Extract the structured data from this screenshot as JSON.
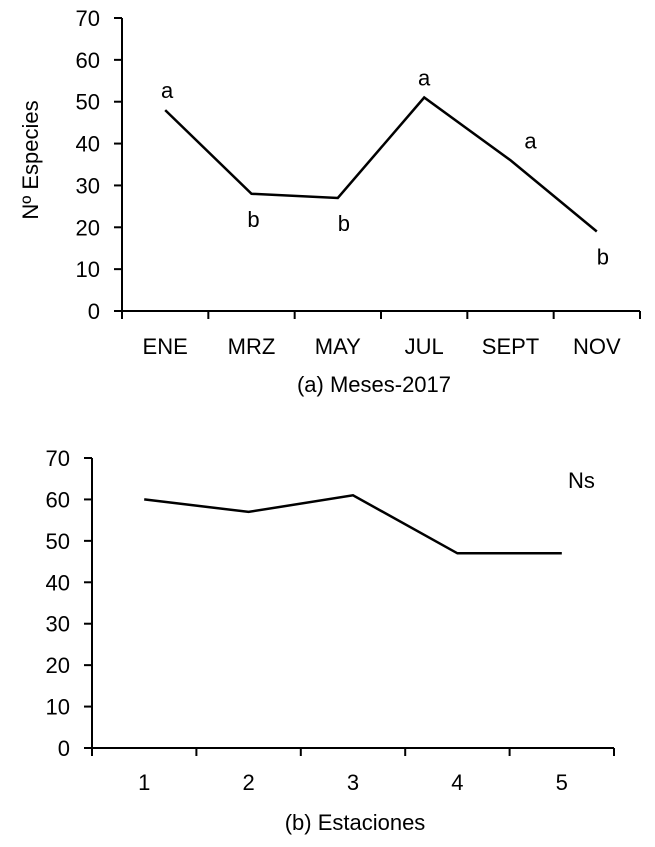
{
  "chart_data": [
    {
      "type": "line",
      "categories": [
        "ENE",
        "MRZ",
        "MAY",
        "JUL",
        "SEPT",
        "NOV"
      ],
      "values": [
        48,
        28,
        27,
        51,
        36,
        19
      ],
      "annotations": [
        "a",
        "b",
        "b",
        "a",
        "a",
        "b"
      ],
      "xlabel": "(a) Meses-2017",
      "ylabel": "Nº Especies",
      "ylim": [
        0,
        70
      ],
      "yticks": [
        0,
        10,
        20,
        30,
        40,
        50,
        60,
        70
      ],
      "grid": false
    },
    {
      "type": "line",
      "categories": [
        "1",
        "2",
        "3",
        "4",
        "5"
      ],
      "values": [
        60,
        57,
        61,
        47,
        47
      ],
      "xlabel": "(b) Estaciones",
      "ylabel": "",
      "ylim": [
        0,
        70
      ],
      "yticks": [
        0,
        10,
        20,
        30,
        40,
        50,
        60,
        70
      ],
      "note": "Ns",
      "grid": false
    }
  ]
}
